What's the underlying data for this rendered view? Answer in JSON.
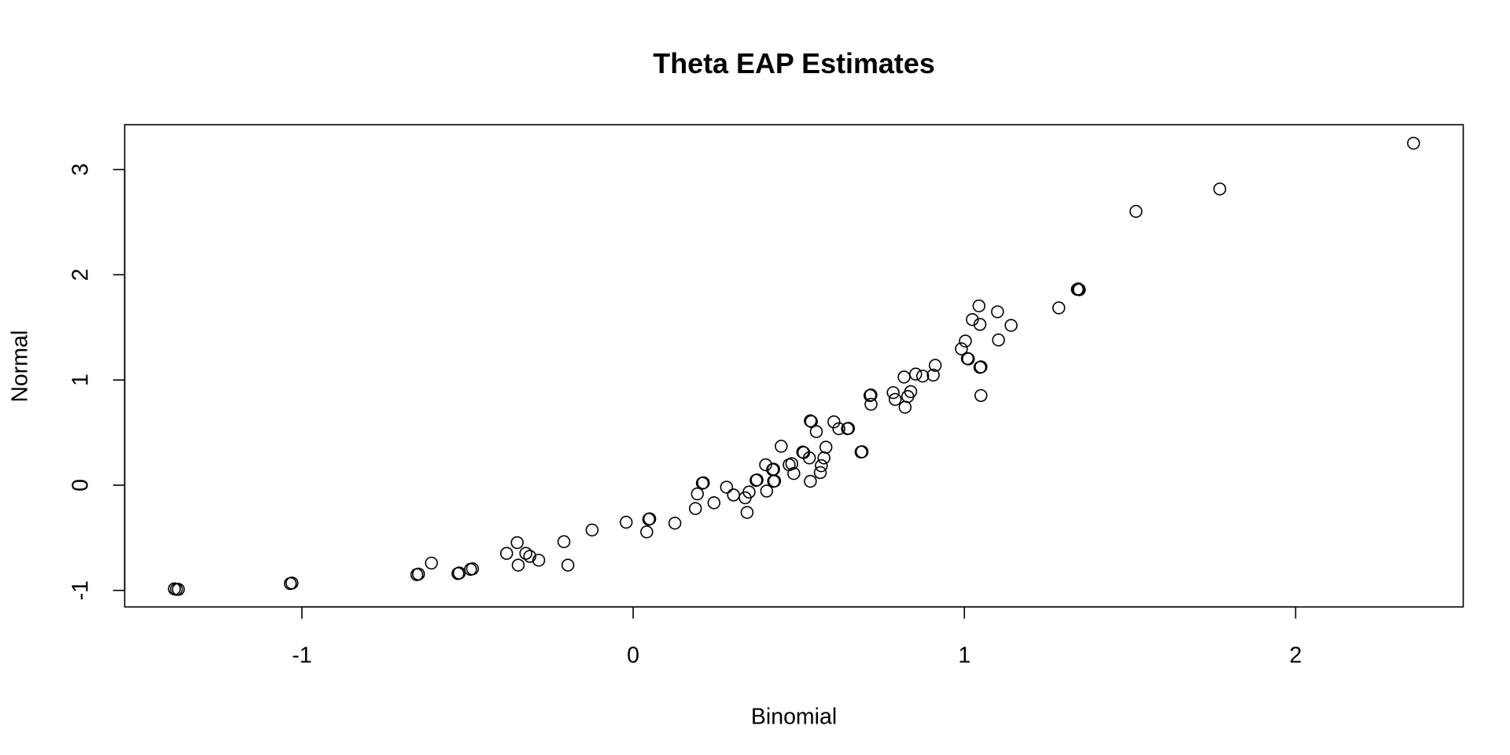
{
  "chart_data": {
    "type": "scatter",
    "title": "Theta EAP Estimates",
    "xlabel": "Binomial",
    "ylabel": "Normal",
    "xlim": [
      -1.535,
      2.506
    ],
    "ylim": [
      -1.157,
      3.426
    ],
    "xticks": [
      -1,
      0,
      1,
      2
    ],
    "yticks": [
      -1,
      0,
      1,
      2,
      3
    ],
    "grid": false,
    "points": [
      [
        -1.379,
        -0.99
      ],
      [
        -1.373,
        -0.99
      ],
      [
        -1.385,
        -0.985
      ],
      [
        -1.035,
        -0.935
      ],
      [
        -1.03,
        -0.93
      ],
      [
        -0.653,
        -0.85
      ],
      [
        -0.648,
        -0.845
      ],
      [
        -0.609,
        -0.74
      ],
      [
        -0.529,
        -0.84
      ],
      [
        -0.525,
        -0.835
      ],
      [
        -0.491,
        -0.8
      ],
      [
        -0.485,
        -0.795
      ],
      [
        -0.382,
        -0.648
      ],
      [
        -0.35,
        -0.546
      ],
      [
        -0.347,
        -0.76
      ],
      [
        -0.324,
        -0.648
      ],
      [
        -0.312,
        -0.676
      ],
      [
        -0.285,
        -0.713
      ],
      [
        -0.209,
        -0.537
      ],
      [
        -0.197,
        -0.76
      ],
      [
        -0.124,
        -0.426
      ],
      [
        -0.021,
        -0.352
      ],
      [
        0.041,
        -0.444
      ],
      [
        0.047,
        -0.324
      ],
      [
        0.05,
        -0.32
      ],
      [
        0.126,
        -0.361
      ],
      [
        0.188,
        -0.222
      ],
      [
        0.194,
        -0.083
      ],
      [
        0.209,
        0.019
      ],
      [
        0.212,
        0.023
      ],
      [
        0.244,
        -0.167
      ],
      [
        0.282,
        -0.019
      ],
      [
        0.303,
        -0.093
      ],
      [
        0.338,
        -0.12
      ],
      [
        0.35,
        -0.065
      ],
      [
        0.344,
        -0.259
      ],
      [
        0.371,
        0.046
      ],
      [
        0.374,
        0.05
      ],
      [
        0.4,
        0.194
      ],
      [
        0.403,
        -0.056
      ],
      [
        0.421,
        0.148
      ],
      [
        0.424,
        0.152
      ],
      [
        0.424,
        0.037
      ],
      [
        0.427,
        0.04
      ],
      [
        0.447,
        0.37
      ],
      [
        0.471,
        0.194
      ],
      [
        0.479,
        0.204
      ],
      [
        0.485,
        0.111
      ],
      [
        0.512,
        0.315
      ],
      [
        0.515,
        0.31
      ],
      [
        0.532,
        0.259
      ],
      [
        0.535,
        0.037
      ],
      [
        0.535,
        0.611
      ],
      [
        0.538,
        0.605
      ],
      [
        0.553,
        0.509
      ],
      [
        0.565,
        0.12
      ],
      [
        0.568,
        0.185
      ],
      [
        0.576,
        0.259
      ],
      [
        0.582,
        0.361
      ],
      [
        0.606,
        0.602
      ],
      [
        0.621,
        0.537
      ],
      [
        0.647,
        0.537
      ],
      [
        0.65,
        0.54
      ],
      [
        0.688,
        0.315
      ],
      [
        0.691,
        0.318
      ],
      [
        0.715,
        0.852
      ],
      [
        0.718,
        0.857
      ],
      [
        0.718,
        0.769
      ],
      [
        0.785,
        0.88
      ],
      [
        0.791,
        0.815
      ],
      [
        0.818,
        1.028
      ],
      [
        0.821,
        0.741
      ],
      [
        0.829,
        0.843
      ],
      [
        0.838,
        0.889
      ],
      [
        0.853,
        1.056
      ],
      [
        0.874,
        1.037
      ],
      [
        0.906,
        1.046
      ],
      [
        0.912,
        1.139
      ],
      [
        0.991,
        1.296
      ],
      [
        1.003,
        1.37
      ],
      [
        1.009,
        1.204
      ],
      [
        1.012,
        1.2
      ],
      [
        1.024,
        1.574
      ],
      [
        1.044,
        1.704
      ],
      [
        1.047,
        1.528
      ],
      [
        1.047,
        1.12
      ],
      [
        1.05,
        1.124
      ],
      [
        1.05,
        0.852
      ],
      [
        1.1,
        1.648
      ],
      [
        1.103,
        1.38
      ],
      [
        1.141,
        1.519
      ],
      [
        1.285,
        1.685
      ],
      [
        1.341,
        1.861
      ],
      [
        1.344,
        1.865
      ],
      [
        1.347,
        1.858
      ],
      [
        1.518,
        2.602
      ],
      [
        1.771,
        2.815
      ],
      [
        2.356,
        3.25
      ]
    ]
  }
}
